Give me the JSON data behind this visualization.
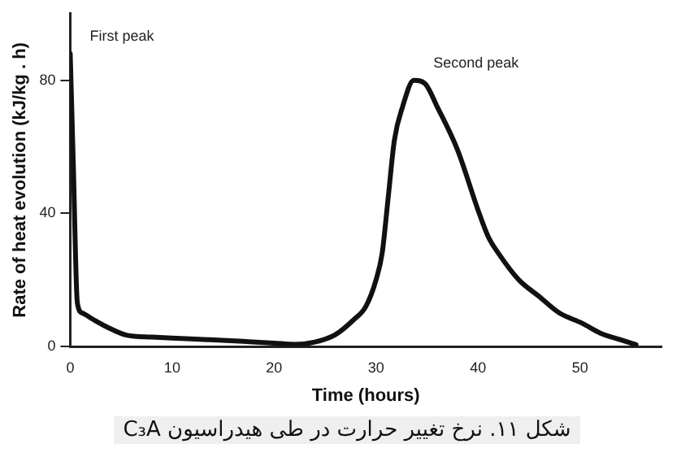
{
  "chart_data": {
    "type": "line",
    "xlabel": "Time (hours)",
    "ylabel": "Rate of heat evolution (kJ/kg . h)",
    "xlim": [
      0,
      58
    ],
    "xticks": [
      0,
      10,
      20,
      30,
      40,
      50
    ],
    "ylim": [
      0,
      100
    ],
    "yticks": [
      0,
      40,
      80
    ],
    "grid": false,
    "legend": false,
    "series": [
      {
        "color": "#111111",
        "x": [
          0,
          0.3,
          0.7,
          1.2,
          2.3,
          3.5,
          5.5,
          8,
          10,
          13.7,
          17,
          20,
          22,
          24,
          26,
          27.8,
          29,
          30,
          30.6,
          31.2,
          31.8,
          32.6,
          33.7,
          34.8,
          36,
          38,
          40,
          41,
          42,
          44,
          46,
          48,
          50.2,
          52,
          54,
          55.5
        ],
        "values": [
          88,
          55,
          13,
          10,
          8,
          6,
          3.4,
          2.8,
          2.5,
          2,
          1.5,
          1,
          0.6,
          1.3,
          3.5,
          8,
          12,
          20,
          28,
          45,
          62,
          72,
          80,
          79,
          72,
          59,
          41,
          33,
          28,
          20,
          15,
          10,
          7,
          4,
          2,
          0.5
        ]
      }
    ],
    "annotations": [
      {
        "text": "First peak",
        "x": 0,
        "y": 88
      },
      {
        "text": "Second peak",
        "x": 33.7,
        "y": 80
      },
      "شکل ۱۱. نرخ تغییر حرارت در طی هیدراسیون C₃A"
    ]
  }
}
